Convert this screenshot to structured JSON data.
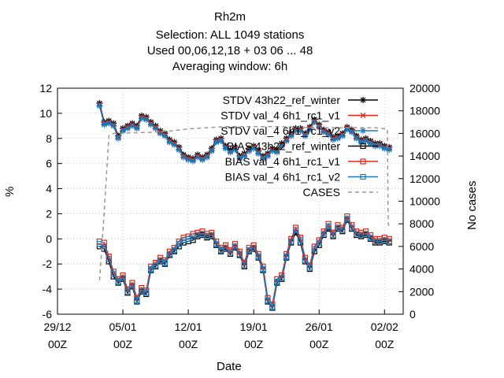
{
  "header": {
    "title": "Rh2m",
    "selection": "Selection: ALL   1049 stations",
    "used": "Used  00,06,12,18  + 03 06 ... 48",
    "averaging": "Averaging window:  6h"
  },
  "chart_data": {
    "type": "line",
    "title": "Rh2m",
    "xlabel": "Date",
    "ylabel": "%",
    "y2label": "No cases",
    "ylim": [
      -6,
      12
    ],
    "y2lim": [
      0,
      20000
    ],
    "xlim_days": [
      0,
      4
    ],
    "x_ticks": [
      {
        "day": 0,
        "line1": "29/12",
        "line2": "00Z"
      },
      {
        "day": 7,
        "line1": "05/01",
        "line2": "00Z"
      },
      {
        "day": 14,
        "line1": "12/01",
        "line2": "00Z"
      },
      {
        "day": 21,
        "line1": "19/01",
        "line2": "00Z"
      },
      {
        "day": 28,
        "line1": "26/01",
        "line2": "00Z"
      },
      {
        "day": 35,
        "line1": "02/02",
        "line2": "00Z"
      }
    ],
    "y_ticks": [
      -6,
      -4,
      -2,
      0,
      2,
      4,
      6,
      8,
      10,
      12
    ],
    "y2_ticks": [
      0,
      2000,
      4000,
      6000,
      8000,
      10000,
      12000,
      14000,
      16000,
      18000,
      20000
    ],
    "grid": true,
    "legend_position": "top-right",
    "series": [
      {
        "name": "STDV 43h22_ref_winter",
        "legend_label": "STDV 43h22_ref_winter",
        "color": "#000000",
        "marker": "star",
        "axis": "y1",
        "x": [
          4.5,
          5,
          5.5,
          6,
          6.5,
          7,
          7.5,
          8,
          8.5,
          9,
          9.5,
          10,
          10.5,
          11,
          11.5,
          12,
          12.5,
          13,
          13.5,
          14,
          14.5,
          15,
          15.5,
          16,
          16.5,
          17,
          17.5,
          18,
          18.5,
          19,
          19.5,
          20,
          20.5,
          21,
          21.5,
          22,
          22.5,
          23,
          23.5,
          24,
          24.5,
          25,
          25.5,
          26,
          26.5,
          27,
          27.5,
          28,
          28.5,
          29,
          29.5,
          30,
          30.5,
          31,
          31.5,
          32,
          32.5,
          33,
          33.5,
          34,
          34.5,
          35,
          35.5
        ],
        "y": [
          10.8,
          9.3,
          9.4,
          9.2,
          8.2,
          8.8,
          9.0,
          9.2,
          9.0,
          9.8,
          9.7,
          9.3,
          9.0,
          8.6,
          8.4,
          7.9,
          7.7,
          7.3,
          6.7,
          6.5,
          6.4,
          6.7,
          6.5,
          6.7,
          7.2,
          7.9,
          8.0,
          7.4,
          7.1,
          7.3,
          6.6,
          6.8,
          7.2,
          7.4,
          7.0,
          6.6,
          6.8,
          7.2,
          7.1,
          7.6,
          8.0,
          8.4,
          8.8,
          8.8,
          8.4,
          8.9,
          9.5,
          9.1,
          8.7,
          8.5,
          8.1,
          8.2,
          8.4,
          8.9,
          8.7,
          8.2,
          7.9,
          8.0,
          7.8,
          7.6,
          7.6,
          7.4,
          7.3
        ]
      },
      {
        "name": "STDV val_4 6h1_rc1_v1",
        "legend_label": "STDV val_4 6h1_rc1_v1",
        "color": "#e6261a",
        "marker": "x",
        "axis": "y1",
        "x": [
          4.5,
          5,
          5.5,
          6,
          6.5,
          7,
          7.5,
          8,
          8.5,
          9,
          9.5,
          10,
          10.5,
          11,
          11.5,
          12,
          12.5,
          13,
          13.5,
          14,
          14.5,
          15,
          15.5,
          16,
          16.5,
          17,
          17.5,
          18,
          18.5,
          19,
          19.5,
          20,
          20.5,
          21,
          21.5,
          22,
          22.5,
          23,
          23.5,
          24,
          24.5,
          25,
          25.5,
          26,
          26.5,
          27,
          27.5,
          28,
          28.5,
          29,
          29.5,
          30,
          30.5,
          31,
          31.5,
          32,
          32.5,
          33,
          33.5,
          34,
          34.5,
          35,
          35.5
        ],
        "y": [
          10.7,
          9.2,
          9.3,
          9.1,
          8.1,
          8.7,
          8.9,
          9.1,
          8.9,
          9.7,
          9.6,
          9.2,
          8.9,
          8.5,
          8.3,
          7.8,
          7.6,
          7.2,
          6.6,
          6.4,
          6.3,
          6.6,
          6.4,
          6.6,
          7.1,
          7.8,
          7.9,
          7.3,
          7.0,
          7.2,
          6.5,
          6.7,
          7.1,
          7.3,
          6.9,
          6.5,
          6.7,
          7.1,
          7.0,
          7.5,
          7.9,
          8.3,
          8.7,
          8.7,
          8.3,
          8.8,
          9.4,
          9.0,
          8.6,
          8.4,
          8.0,
          8.1,
          8.3,
          8.8,
          8.6,
          8.1,
          7.8,
          7.9,
          7.7,
          7.5,
          7.5,
          7.3,
          7.2
        ]
      },
      {
        "name": "STDV val_4 6h1_rc1_v2",
        "legend_label": "STDV val_4 6h1_rc1_v2",
        "color": "#1f78b4",
        "marker": "star",
        "axis": "y1",
        "x": [
          4.5,
          5,
          5.5,
          6,
          6.5,
          7,
          7.5,
          8,
          8.5,
          9,
          9.5,
          10,
          10.5,
          11,
          11.5,
          12,
          12.5,
          13,
          13.5,
          14,
          14.5,
          15,
          15.5,
          16,
          16.5,
          17,
          17.5,
          18,
          18.5,
          19,
          19.5,
          20,
          20.5,
          21,
          21.5,
          22,
          22.5,
          23,
          23.5,
          24,
          24.5,
          25,
          25.5,
          26,
          26.5,
          27,
          27.5,
          28,
          28.5,
          29,
          29.5,
          30,
          30.5,
          31,
          31.5,
          32,
          32.5,
          33,
          33.5,
          34,
          34.5,
          35,
          35.5
        ],
        "y": [
          10.6,
          9.1,
          9.2,
          9.0,
          8.0,
          8.6,
          8.8,
          9.0,
          8.8,
          9.6,
          9.5,
          9.1,
          8.8,
          8.4,
          8.2,
          7.7,
          7.5,
          7.1,
          6.5,
          6.3,
          6.2,
          6.5,
          6.3,
          6.5,
          7.0,
          7.7,
          7.8,
          7.2,
          6.9,
          7.1,
          6.4,
          6.6,
          7.0,
          7.2,
          6.8,
          6.4,
          6.6,
          7.0,
          6.9,
          7.4,
          7.8,
          8.2,
          8.6,
          8.6,
          8.2,
          8.7,
          9.3,
          8.9,
          8.5,
          8.3,
          7.9,
          8.0,
          8.2,
          8.7,
          8.5,
          8.0,
          7.7,
          7.8,
          7.6,
          7.4,
          7.4,
          7.2,
          7.1
        ]
      },
      {
        "name": "BIAS 43h22_ref_winter",
        "legend_label": "BIAS 43h22_ref_winter",
        "color": "#000000",
        "marker": "square",
        "axis": "y1",
        "x": [
          4.5,
          5,
          5.5,
          6,
          6.5,
          7,
          7.5,
          8,
          8.5,
          9,
          9.5,
          10,
          10.5,
          11,
          11.5,
          12,
          12.5,
          13,
          13.5,
          14,
          14.5,
          15,
          15.5,
          16,
          16.5,
          17,
          17.5,
          18,
          18.5,
          19,
          19.5,
          20,
          20.5,
          21,
          21.5,
          22,
          22.5,
          23,
          23.5,
          24,
          24.5,
          25,
          25.5,
          26,
          26.5,
          27,
          27.5,
          28,
          28.5,
          29,
          29.5,
          30,
          30.5,
          31,
          31.5,
          32,
          32.5,
          33,
          33.5,
          34,
          34.5,
          35,
          35.5
        ],
        "y": [
          -0.6,
          -0.8,
          -1.8,
          -3.0,
          -3.5,
          -3.2,
          -4.3,
          -3.8,
          -5.0,
          -4.2,
          -4.4,
          -2.5,
          -2.2,
          -1.8,
          -2.0,
          -1.3,
          -1.0,
          -0.6,
          -0.3,
          -0.2,
          -0.1,
          0.2,
          0.3,
          0.1,
          0.2,
          -0.5,
          -1.0,
          -0.8,
          -1.2,
          -0.7,
          -1.3,
          -2.2,
          -1.0,
          -0.8,
          -1.5,
          -2.5,
          -5.0,
          -5.5,
          -3.5,
          -3.2,
          -1.5,
          -0.3,
          0.5,
          -0.3,
          -1.8,
          -2.4,
          -1.0,
          -0.5,
          0.3,
          0.8,
          0.2,
          0.8,
          0.6,
          1.5,
          0.8,
          0.3,
          0.2,
          0.3,
          0.0,
          -0.3,
          -0.3,
          -0.2,
          -0.3
        ]
      },
      {
        "name": "BIAS val_4 6h1_rc1_v1",
        "legend_label": "BIAS val_4 6h1_rc1_v1",
        "color": "#e6261a",
        "marker": "square",
        "axis": "y1",
        "x": [
          4.5,
          5,
          5.5,
          6,
          6.5,
          7,
          7.5,
          8,
          8.5,
          9,
          9.5,
          10,
          10.5,
          11,
          11.5,
          12,
          12.5,
          13,
          13.5,
          14,
          14.5,
          15,
          15.5,
          16,
          16.5,
          17,
          17.5,
          18,
          18.5,
          19,
          19.5,
          20,
          20.5,
          21,
          21.5,
          22,
          22.5,
          23,
          23.5,
          24,
          24.5,
          25,
          25.5,
          26,
          26.5,
          27,
          27.5,
          28,
          28.5,
          29,
          29.5,
          30,
          30.5,
          31,
          31.5,
          32,
          32.5,
          33,
          33.5,
          34,
          34.5,
          35,
          35.5
        ],
        "y": [
          -0.2,
          -0.3,
          -1.4,
          -2.6,
          -3.2,
          -2.9,
          -4.0,
          -3.5,
          -4.7,
          -3.9,
          -4.1,
          -2.2,
          -1.9,
          -1.5,
          -1.7,
          -1.0,
          -0.7,
          -0.2,
          0.1,
          0.2,
          0.4,
          0.5,
          0.6,
          0.4,
          0.5,
          -0.2,
          -0.7,
          -0.5,
          -0.9,
          -0.4,
          -1.0,
          -1.9,
          -0.7,
          -0.5,
          -1.2,
          -2.2,
          -4.7,
          -5.2,
          -3.2,
          -2.9,
          -1.2,
          0.0,
          0.9,
          0.1,
          -1.5,
          -2.1,
          -0.6,
          -0.1,
          0.6,
          1.2,
          0.5,
          1.1,
          0.9,
          1.8,
          1.1,
          0.6,
          0.5,
          0.6,
          0.3,
          0.0,
          0.0,
          0.1,
          0.0
        ]
      },
      {
        "name": "BIAS val_4 6h1_rc1_v2",
        "legend_label": "BIAS val_4 6h1_rc1_v2",
        "color": "#1f78b4",
        "marker": "square",
        "axis": "y1",
        "x": [
          4.5,
          5,
          5.5,
          6,
          6.5,
          7,
          7.5,
          8,
          8.5,
          9,
          9.5,
          10,
          10.5,
          11,
          11.5,
          12,
          12.5,
          13,
          13.5,
          14,
          14.5,
          15,
          15.5,
          16,
          16.5,
          17,
          17.5,
          18,
          18.5,
          19,
          19.5,
          20,
          20.5,
          21,
          21.5,
          22,
          22.5,
          23,
          23.5,
          24,
          24.5,
          25,
          25.5,
          26,
          26.5,
          27,
          27.5,
          28,
          28.5,
          29,
          29.5,
          30,
          30.5,
          31,
          31.5,
          32,
          32.5,
          33,
          33.5,
          34,
          34.5,
          35,
          35.5
        ],
        "y": [
          -0.4,
          -0.6,
          -1.6,
          -2.8,
          -3.4,
          -3.1,
          -4.2,
          -3.7,
          -4.9,
          -4.1,
          -4.3,
          -2.4,
          -2.1,
          -1.7,
          -1.9,
          -1.2,
          -0.9,
          -0.4,
          -0.1,
          0.0,
          0.2,
          0.3,
          0.4,
          0.2,
          0.3,
          -0.4,
          -0.9,
          -0.7,
          -1.1,
          -0.6,
          -1.2,
          -2.1,
          -0.9,
          -0.7,
          -1.4,
          -2.4,
          -4.9,
          -5.4,
          -3.4,
          -3.1,
          -1.4,
          -0.2,
          0.7,
          -0.1,
          -1.7,
          -2.3,
          -0.8,
          -0.3,
          0.4,
          1.0,
          0.3,
          0.9,
          0.7,
          1.6,
          0.9,
          0.4,
          0.3,
          0.4,
          0.1,
          -0.2,
          -0.2,
          -0.1,
          -0.2
        ]
      },
      {
        "name": "CASES",
        "legend_label": "CASES",
        "color": "#999999",
        "marker": "none",
        "dashed": true,
        "axis": "y2",
        "x": [
          4.5,
          5,
          5.5,
          6,
          10,
          12,
          14,
          16,
          18,
          20,
          24,
          28,
          30,
          32,
          34,
          35.3,
          35.4,
          35.5
        ],
        "y": [
          3000,
          9000,
          15800,
          16000,
          16100,
          16200,
          16400,
          16500,
          16600,
          16600,
          16600,
          16500,
          16500,
          16500,
          16500,
          16400,
          8000,
          7800
        ]
      }
    ]
  }
}
